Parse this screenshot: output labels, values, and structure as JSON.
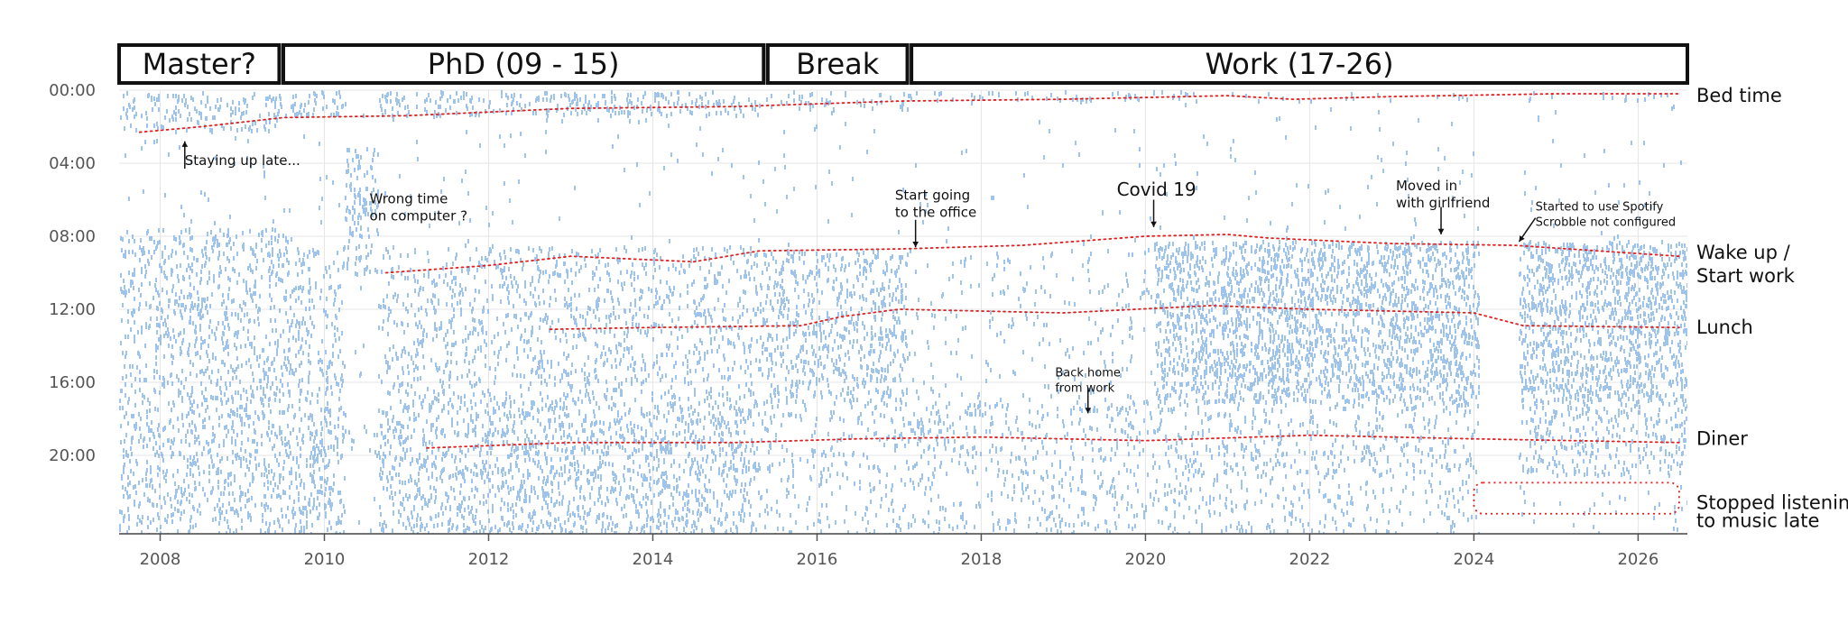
{
  "chart_data": {
    "type": "scatter",
    "x_axis": {
      "range": [
        2007.5,
        2026.6
      ],
      "ticks": [
        2008,
        2010,
        2012,
        2014,
        2016,
        2018,
        2020,
        2022,
        2024,
        2026
      ]
    },
    "y_axis": {
      "range_hours": [
        0,
        24.3
      ],
      "inverted": true,
      "ticks": [
        "00:00",
        "04:00",
        "08:00",
        "12:00",
        "16:00",
        "20:00"
      ]
    },
    "grid": true,
    "dot_color": "#7fb0e6",
    "guide_color": "#e02020",
    "periods": [
      {
        "label": "Master?",
        "start": 2007.5,
        "end": 2009.45
      },
      {
        "label": "PhD (09 - 15)",
        "start": 2009.5,
        "end": 2015.35
      },
      {
        "label": "Break",
        "start": 2015.4,
        "end": 2017.1
      },
      {
        "label": "Work (17-26)",
        "start": 2017.15,
        "end": 2026.6
      }
    ],
    "guide_lines": [
      {
        "label": "Bed time",
        "points": [
          [
            2007.75,
            2.3
          ],
          [
            2008.5,
            2.0
          ],
          [
            2009.5,
            1.5
          ],
          [
            2011,
            1.4
          ],
          [
            2013,
            1.0
          ],
          [
            2015,
            0.9
          ],
          [
            2017,
            0.6
          ],
          [
            2019,
            0.5
          ],
          [
            2021,
            0.3
          ],
          [
            2021.8,
            0.5
          ],
          [
            2023,
            0.35
          ],
          [
            2025,
            0.2
          ],
          [
            2026.5,
            0.2
          ]
        ]
      },
      {
        "label": "Wake up / Start work",
        "points": [
          [
            2010.75,
            10.0
          ],
          [
            2012,
            9.6
          ],
          [
            2013,
            9.1
          ],
          [
            2014.5,
            9.4
          ],
          [
            2015.3,
            8.8
          ],
          [
            2017,
            8.7
          ],
          [
            2018.5,
            8.5
          ],
          [
            2020,
            8.0
          ],
          [
            2021,
            7.9
          ],
          [
            2021.5,
            8.1
          ],
          [
            2023,
            8.4
          ],
          [
            2024.5,
            8.5
          ],
          [
            2026.5,
            9.1
          ]
        ]
      },
      {
        "label": "Lunch",
        "points": [
          [
            2012.75,
            13.1
          ],
          [
            2014,
            13.0
          ],
          [
            2015.8,
            12.9
          ],
          [
            2016.3,
            12.4
          ],
          [
            2017,
            12.0
          ],
          [
            2019,
            12.2
          ],
          [
            2020.8,
            11.8
          ],
          [
            2022,
            12.0
          ],
          [
            2024,
            12.2
          ],
          [
            2024.6,
            12.9
          ],
          [
            2026.5,
            13.0
          ]
        ]
      },
      {
        "label": "Diner",
        "points": [
          [
            2011.25,
            19.6
          ],
          [
            2013,
            19.3
          ],
          [
            2015,
            19.3
          ],
          [
            2016.5,
            19.1
          ],
          [
            2018,
            19.0
          ],
          [
            2020,
            19.2
          ],
          [
            2022,
            18.9
          ],
          [
            2024,
            19.1
          ],
          [
            2026.5,
            19.3
          ]
        ]
      }
    ],
    "right_labels": [
      {
        "lines": [
          "Bed time"
        ],
        "hour": 0.3
      },
      {
        "lines": [
          "Wake up /",
          "Start work"
        ],
        "hour": 8.9
      },
      {
        "lines": [
          "Lunch"
        ],
        "hour": 13.0
      },
      {
        "lines": [
          "Diner"
        ],
        "hour": 19.1
      },
      {
        "lines": [
          "Stopped listening",
          " to music late"
        ],
        "hour": 22.6
      }
    ],
    "annotations": [
      {
        "lines": [
          "Staying up late..."
        ],
        "x": 2008.3,
        "hour": 3.3,
        "arrow": {
          "from": [
            2008.3,
            4.3
          ],
          "to": [
            2008.3,
            2.8
          ]
        },
        "style": "anno-text"
      },
      {
        "lines": [
          "Wrong time",
          "on computer ?"
        ],
        "x": 2010.55,
        "hour": 5.4,
        "style": "anno-text"
      },
      {
        "lines": [
          "Start going",
          "to the office"
        ],
        "x": 2016.95,
        "hour": 5.2,
        "arrow": {
          "from": [
            2017.2,
            7.1
          ],
          "to": [
            2017.2,
            8.6
          ]
        },
        "style": "anno-text"
      },
      {
        "lines": [
          "Covid 19"
        ],
        "x": 2019.65,
        "hour": 5.0,
        "arrow": {
          "from": [
            2020.1,
            6.0
          ],
          "to": [
            2020.1,
            7.5
          ]
        },
        "style": "anno-covid"
      },
      {
        "lines": [
          "Moved in",
          "with girlfriend"
        ],
        "x": 2023.05,
        "hour": 4.7,
        "arrow": {
          "from": [
            2023.6,
            6.4
          ],
          "to": [
            2023.6,
            7.9
          ]
        },
        "style": "anno-text"
      },
      {
        "lines": [
          "Started to use Spotify",
          "Scrobble not configured"
        ],
        "x": 2024.75,
        "hour": 5.8,
        "arrow": {
          "from": [
            2024.75,
            7.0
          ],
          "to": [
            2024.55,
            8.3
          ]
        },
        "style": "anno-small"
      },
      {
        "lines": [
          "Back home",
          "from work"
        ],
        "x": 2018.9,
        "hour": 14.9,
        "arrow": {
          "from": [
            2019.3,
            16.3
          ],
          "to": [
            2019.3,
            17.7
          ]
        },
        "style": "anno-small"
      }
    ],
    "late_box": {
      "x0": 2024.0,
      "x1": 2026.5,
      "h0": 21.5,
      "h1": 23.2
    }
  }
}
